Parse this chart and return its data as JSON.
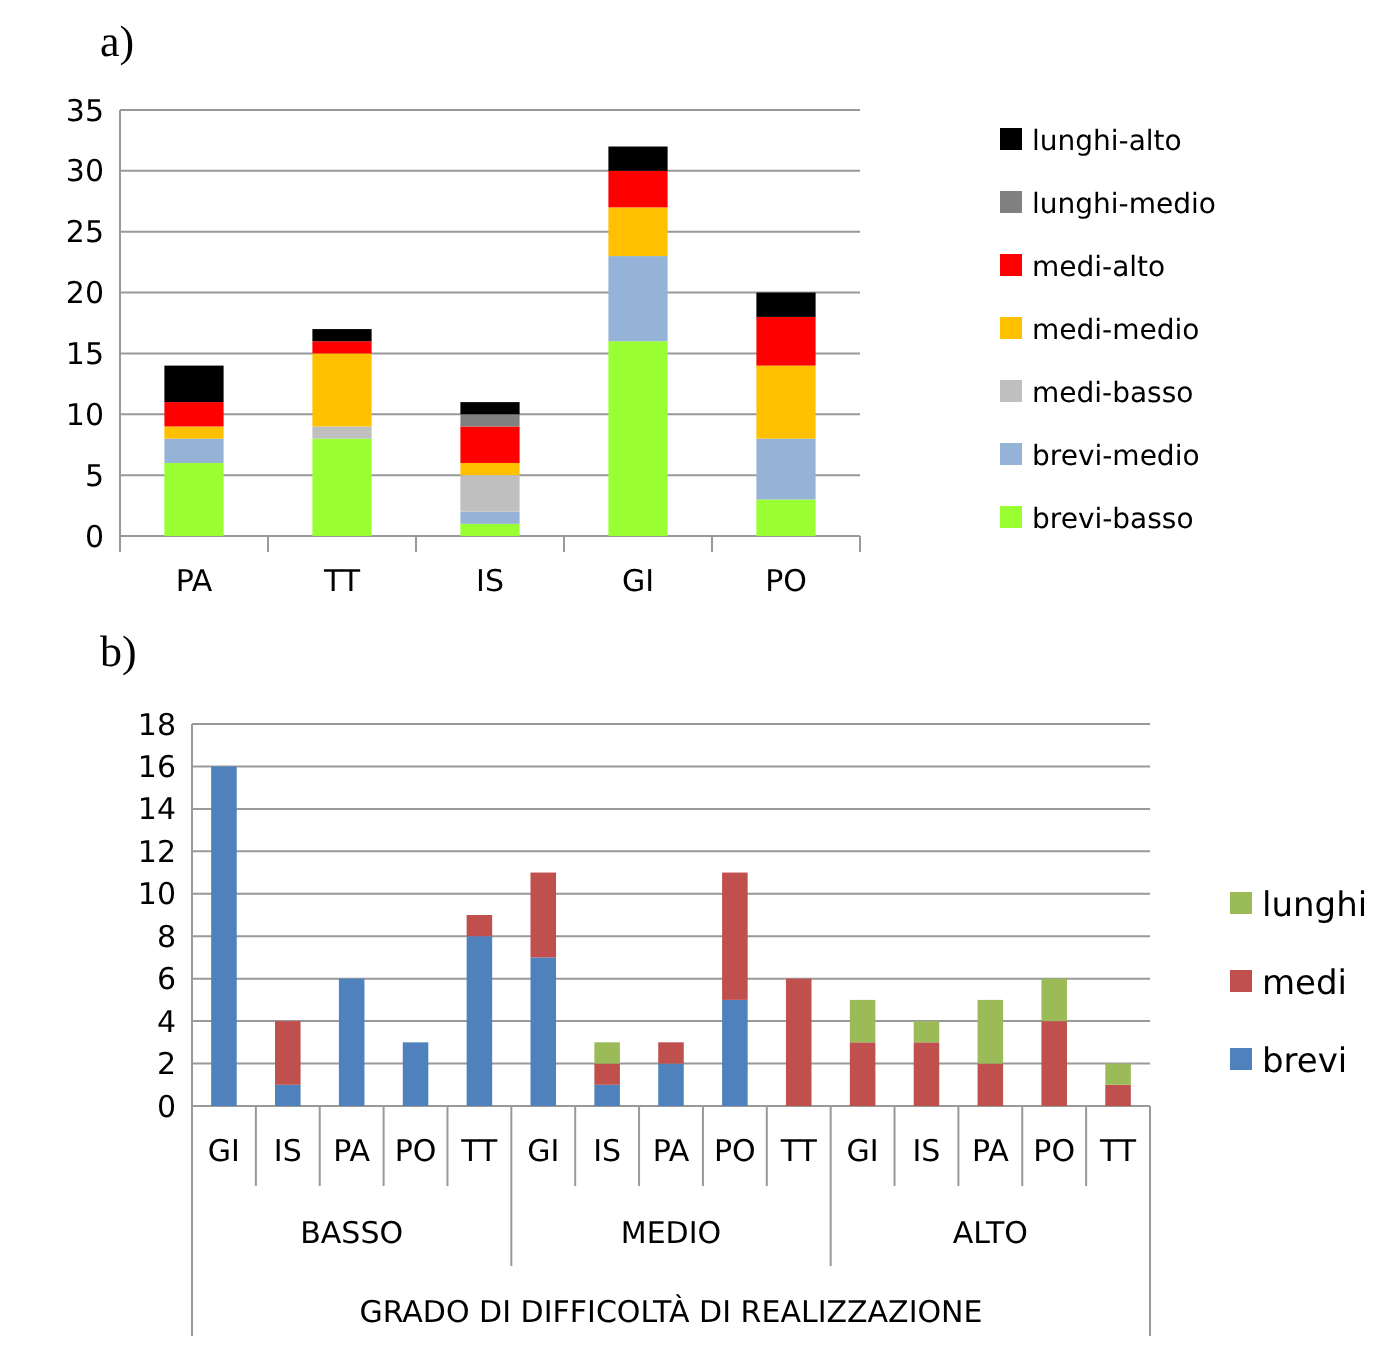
{
  "chart_data": [
    {
      "type": "bar",
      "title": "a)",
      "stacked": true,
      "categories": [
        "PA",
        "TT",
        "IS",
        "GI",
        "PO"
      ],
      "ylim": [
        0,
        35
      ],
      "yticks": [
        0,
        5,
        10,
        15,
        20,
        25,
        30,
        35
      ],
      "grid": "y",
      "legend": "right",
      "series": [
        {
          "name": "brevi-basso",
          "color": "#99ff33",
          "values": [
            6,
            8,
            1,
            16,
            3
          ]
        },
        {
          "name": "brevi-medio",
          "color": "#95b3d7",
          "values": [
            2,
            0,
            1,
            7,
            5
          ]
        },
        {
          "name": "medi-basso",
          "color": "#bfbfbf",
          "values": [
            0,
            1,
            3,
            0,
            0
          ]
        },
        {
          "name": "medi-medio",
          "color": "#ffc000",
          "values": [
            1,
            6,
            1,
            4,
            6
          ]
        },
        {
          "name": "medi-alto",
          "color": "#ff0000",
          "values": [
            2,
            1,
            3,
            3,
            4
          ]
        },
        {
          "name": "lunghi-medio",
          "color": "#808080",
          "values": [
            0,
            0,
            1,
            0,
            0
          ]
        },
        {
          "name": "lunghi-alto",
          "color": "#000000",
          "values": [
            3,
            1,
            1,
            2,
            2
          ]
        }
      ]
    },
    {
      "type": "bar",
      "title": "b)",
      "stacked": true,
      "categories": [
        "GI",
        "IS",
        "PA",
        "PO",
        "TT",
        "GI",
        "IS",
        "PA",
        "PO",
        "TT",
        "GI",
        "IS",
        "PA",
        "PO",
        "TT"
      ],
      "xlabel": "GRADO DI DIFFICOLTÀ DI REALIZZAZIONE",
      "annotations": [
        "BASSO",
        "MEDIO",
        "ALTO"
      ],
      "ylim": [
        0,
        18
      ],
      "yticks": [
        0,
        2,
        4,
        6,
        8,
        10,
        12,
        14,
        16,
        18
      ],
      "grid": "y",
      "legend": "right",
      "series": [
        {
          "name": "brevi",
          "color": "#4f81bd",
          "values": [
            16,
            1,
            6,
            3,
            8,
            7,
            1,
            2,
            5,
            0,
            0,
            0,
            0,
            0,
            0
          ]
        },
        {
          "name": "medi",
          "color": "#c0504d",
          "values": [
            0,
            3,
            0,
            0,
            1,
            4,
            1,
            1,
            6,
            6,
            3,
            3,
            2,
            4,
            1
          ]
        },
        {
          "name": "lunghi",
          "color": "#9bbb59",
          "values": [
            0,
            0,
            0,
            0,
            0,
            0,
            1,
            0,
            0,
            0,
            2,
            1,
            3,
            2,
            1
          ]
        }
      ]
    }
  ]
}
